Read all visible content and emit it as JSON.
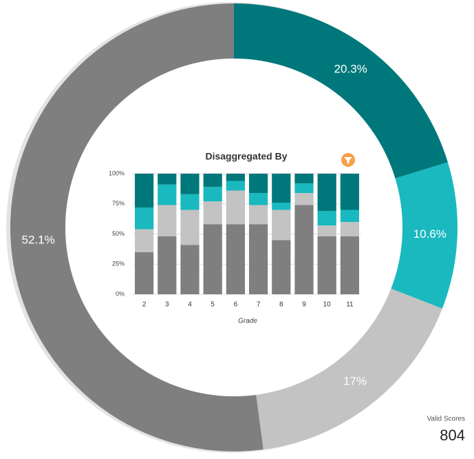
{
  "chart_data": [
    {
      "type": "donut",
      "values": [
        20.3,
        10.6,
        17,
        52.1
      ],
      "value_labels": [
        "20.3%",
        "10.6%",
        "17%",
        "52.1%"
      ],
      "colors": [
        "#00787b",
        "#19b9bf",
        "#c3c3c3",
        "#7f7f7f"
      ],
      "total_label": "Valid Scores",
      "total": 804
    },
    {
      "type": "stacked_bar",
      "title": "Disaggregated By",
      "x_label": "Grade",
      "categories": [
        "2",
        "3",
        "4",
        "5",
        "6",
        "7",
        "8",
        "9",
        "10",
        "11"
      ],
      "series": [
        {
          "color": "#7f7f7f",
          "values": [
            35,
            48,
            41,
            58,
            58,
            58,
            45,
            74,
            48,
            48
          ]
        },
        {
          "color": "#c3c3c3",
          "values": [
            19,
            26,
            29,
            19,
            28,
            16,
            25,
            10,
            9,
            12
          ]
        },
        {
          "color": "#19b9bf",
          "values": [
            18,
            17,
            13,
            12,
            8,
            10,
            6,
            8,
            12,
            10
          ]
        },
        {
          "color": "#00787b",
          "values": [
            28,
            9,
            17,
            11,
            6,
            16,
            24,
            8,
            31,
            30
          ]
        }
      ],
      "ylim": [
        0,
        100
      ],
      "yticks": [
        {
          "value": 0,
          "label": "0%"
        },
        {
          "value": 25,
          "label": "25%"
        },
        {
          "value": 50,
          "label": "50%"
        },
        {
          "value": 75,
          "label": "75%"
        },
        {
          "value": 100,
          "label": "100%"
        }
      ],
      "grid": true
    }
  ]
}
